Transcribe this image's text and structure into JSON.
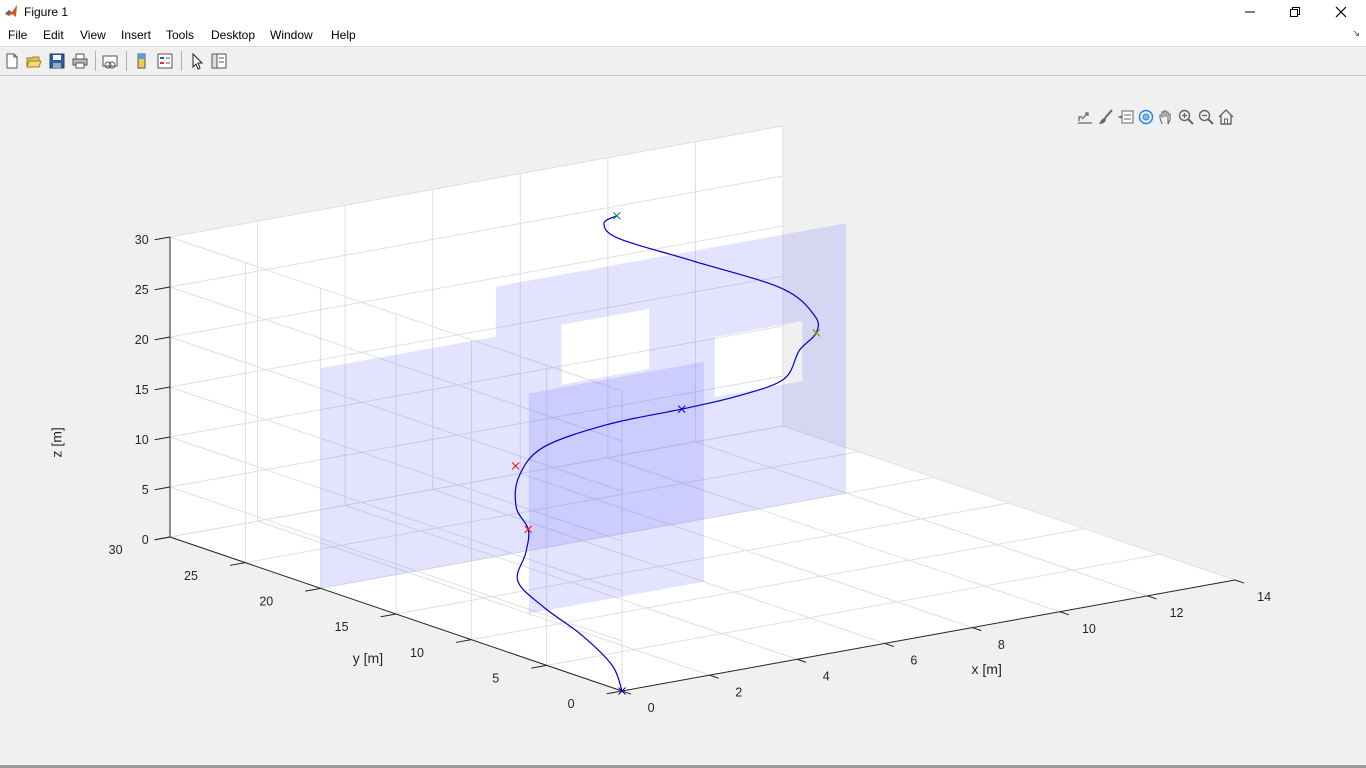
{
  "window": {
    "title": "Figure 1"
  },
  "menubar": {
    "items": [
      "File",
      "Edit",
      "View",
      "Insert",
      "Tools",
      "Desktop",
      "Window",
      "Help"
    ]
  },
  "toolbar": {
    "buttons": [
      "new-figure-icon",
      "open-file-icon",
      "save-icon",
      "print-icon",
      "link-plot-icon",
      "colorbar-icon",
      "legend-icon",
      "edit-plot-icon",
      "property-inspector-icon"
    ]
  },
  "axes_toolbar": {
    "buttons": [
      "export-icon",
      "brush-icon",
      "data-tips-icon",
      "rotate-3d-icon",
      "pan-icon",
      "zoom-in-icon",
      "zoom-out-icon",
      "home-icon"
    ],
    "active": "rotate-3d-icon"
  },
  "chart_data": {
    "type": "line",
    "projection": "3d",
    "xlabel": "x [m]",
    "ylabel": "y [m]",
    "zlabel": "z [m]",
    "xlim": [
      0,
      14
    ],
    "ylim": [
      0,
      30
    ],
    "zlim": [
      0,
      30
    ],
    "xticks": [
      "0",
      "2",
      "4",
      "6",
      "8",
      "10",
      "12",
      "14"
    ],
    "yticks": [
      "0",
      "5",
      "10",
      "15",
      "20",
      "25",
      "30"
    ],
    "zticks": [
      "0",
      "5",
      "10",
      "15",
      "20",
      "25",
      "30"
    ],
    "grid": true,
    "line_color": "#0000cd",
    "plane_color": "#6464ff",
    "trajectory": [
      {
        "x": 0.0,
        "y": 0.0,
        "z": 0.0
      },
      {
        "x": 0.3,
        "y": 1.5,
        "z": 1.5
      },
      {
        "x": 0.3,
        "y": 3.5,
        "z": 3.5
      },
      {
        "x": 0.1,
        "y": 5.5,
        "z": 5.5
      },
      {
        "x": 0.2,
        "y": 7.5,
        "z": 7.0
      },
      {
        "x": 0.9,
        "y": 9.0,
        "z": 8.5
      },
      {
        "x": 1.3,
        "y": 10.0,
        "z": 10.0
      },
      {
        "x": 1.2,
        "y": 10.5,
        "z": 12.0
      },
      {
        "x": 1.5,
        "y": 11.2,
        "z": 14.5
      },
      {
        "x": 2.4,
        "y": 12.2,
        "z": 16.2
      },
      {
        "x": 4.0,
        "y": 12.6,
        "z": 17.0
      },
      {
        "x": 5.7,
        "y": 12.6,
        "z": 17.2
      },
      {
        "x": 7.0,
        "y": 12.6,
        "z": 17.5
      },
      {
        "x": 8.1,
        "y": 12.8,
        "z": 18.2
      },
      {
        "x": 8.8,
        "y": 13.8,
        "z": 20.0
      },
      {
        "x": 9.6,
        "y": 15.0,
        "z": 20.5
      },
      {
        "x": 9.9,
        "y": 16.0,
        "z": 21.5
      },
      {
        "x": 9.5,
        "y": 17.0,
        "z": 24.0
      },
      {
        "x": 8.5,
        "y": 20.0,
        "z": 26.0
      },
      {
        "x": 7.5,
        "y": 22.0,
        "z": 28.0
      },
      {
        "x": 7.5,
        "y": 23.0,
        "z": 29.0
      },
      {
        "x": 7.9,
        "y": 23.3,
        "z": 29.3
      }
    ],
    "waypoints": [
      {
        "x": 0.0,
        "y": 0.0,
        "z": 0.0,
        "color": "#0000cd"
      },
      {
        "x": 1.3,
        "y": 10.0,
        "z": 10.0,
        "color": "#ff0000"
      },
      {
        "x": 1.7,
        "y": 12.0,
        "z": 15.0,
        "color": "#ff0000"
      },
      {
        "x": 5.7,
        "y": 12.6,
        "z": 17.2,
        "color": "#0000cd"
      },
      {
        "x": 9.6,
        "y": 15.0,
        "z": 20.5,
        "color": "#808000"
      },
      {
        "x": 7.9,
        "y": 23.3,
        "z": 29.3,
        "color": "#008080"
      }
    ],
    "walls": [
      {
        "x_range": [
          2,
          6
        ],
        "y": 12,
        "z_range": [
          0,
          22
        ]
      },
      {
        "x_range": [
          0,
          4
        ],
        "y": 20,
        "z_range": [
          0,
          22
        ]
      },
      {
        "x_range": [
          4,
          12
        ],
        "y": 20,
        "z_range": [
          0,
          27
        ],
        "holes": [
          {
            "x_range": [
              5.5,
              7.5
            ],
            "z_range": [
              16,
              22
            ]
          },
          {
            "x_range": [
              9.0,
              11.0
            ],
            "z_range": [
              12,
              18
            ]
          }
        ]
      }
    ]
  }
}
